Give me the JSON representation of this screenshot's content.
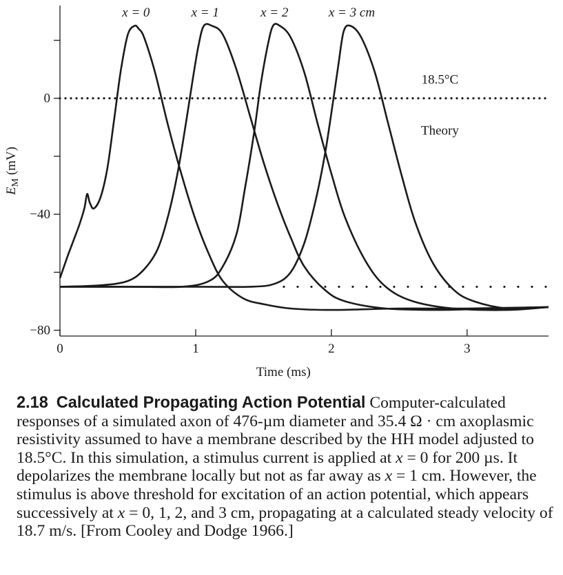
{
  "chart_data": {
    "type": "line",
    "xlabel": "Time (ms)",
    "ylabel_main": "E",
    "ylabel_sub": "M",
    "ylabel_unit": " (mV)",
    "xlim": [
      0,
      3.6
    ],
    "ylim": [
      -82,
      32
    ],
    "x_ticks": [
      0,
      1,
      2,
      3
    ],
    "x_tick_labels": [
      "0",
      "1",
      "2",
      "3"
    ],
    "y_ticks": [
      -80,
      -60,
      -40,
      -20,
      0,
      20
    ],
    "y_tick_labels": [
      "−80",
      "",
      "−40",
      "",
      "0",
      ""
    ],
    "annotations": {
      "temperature": "18.5°C",
      "theory": "Theory"
    },
    "reference_lines": [
      {
        "name": "zero",
        "y": 0,
        "x_start": 0,
        "x_end": 3.6,
        "style": "dotted"
      },
      {
        "name": "resting",
        "y": -65,
        "x_start": 1.65,
        "x_end": 3.6,
        "style": "dotted"
      }
    ],
    "series": [
      {
        "name": "x = 0",
        "x": [
          0.0,
          0.03,
          0.06,
          0.1,
          0.14,
          0.18,
          0.2,
          0.22,
          0.25,
          0.3,
          0.35,
          0.4,
          0.45,
          0.5,
          0.55,
          0.58,
          0.62,
          0.7,
          0.8,
          0.9,
          1.0,
          1.1,
          1.2,
          1.35,
          1.5,
          1.7,
          2.0,
          2.5,
          3.0,
          3.6
        ],
        "y": [
          -62,
          -58,
          -54,
          -49,
          -44,
          -38,
          -33,
          -36,
          -38,
          -34,
          -24,
          -7,
          10,
          22,
          25,
          24,
          21,
          9,
          -10,
          -27,
          -42,
          -54,
          -63,
          -69,
          -71,
          -72.5,
          -73,
          -72.5,
          -72.5,
          -72
        ]
      },
      {
        "name": "x = 1",
        "x": [
          0.0,
          0.3,
          0.5,
          0.62,
          0.72,
          0.8,
          0.87,
          0.93,
          0.98,
          1.02,
          1.06,
          1.12,
          1.2,
          1.3,
          1.4,
          1.5,
          1.6,
          1.7,
          1.8,
          1.95,
          2.1,
          2.4,
          2.8,
          3.2,
          3.6
        ],
        "y": [
          -65,
          -64.5,
          -63,
          -59,
          -52,
          -40,
          -25,
          -8,
          7,
          18,
          25,
          25,
          22,
          10,
          -6,
          -22,
          -36,
          -48,
          -58,
          -66,
          -70,
          -72.5,
          -73,
          -72.5,
          -72
        ]
      },
      {
        "name": "x = 2",
        "x": [
          0.0,
          0.5,
          0.9,
          1.1,
          1.2,
          1.3,
          1.36,
          1.43,
          1.48,
          1.53,
          1.57,
          1.62,
          1.7,
          1.8,
          1.9,
          2.0,
          2.1,
          2.25,
          2.4,
          2.6,
          2.9,
          3.3,
          3.6
        ],
        "y": [
          -65,
          -65,
          -65,
          -63,
          -58,
          -47,
          -32,
          -12,
          5,
          18,
          25,
          25,
          21,
          9,
          -9,
          -26,
          -41,
          -56,
          -65,
          -70,
          -72.5,
          -73,
          -72
        ]
      },
      {
        "name": "x = 3 cm",
        "x": [
          0.0,
          1.0,
          1.4,
          1.58,
          1.7,
          1.8,
          1.88,
          1.95,
          2.0,
          2.05,
          2.09,
          2.14,
          2.22,
          2.32,
          2.42,
          2.52,
          2.62,
          2.75,
          2.9,
          3.05,
          3.3,
          3.6
        ],
        "y": [
          -65,
          -65,
          -65,
          -64,
          -60,
          -50,
          -36,
          -20,
          -5,
          11,
          23,
          25,
          21,
          9,
          -9,
          -27,
          -43,
          -57,
          -66,
          -70,
          -72.5,
          -72
        ]
      }
    ]
  },
  "caption": {
    "number": "2.18",
    "title": "Calculated Propagating Action Potential",
    "s1": " Computer-calculated responses of a simulated axon of 476-µm diameter and 35.4 Ω · cm axoplasmic resistivity assumed to have a membrane described by the HH model adjusted to 18.5°C. In this simulation, a stimulus current is applied at ",
    "v1": "x",
    "s2": " = 0 for 200 µs. It depolarizes the membrane locally but not as far away as ",
    "v2": "x",
    "s3": " = 1 cm. However, the stimulus is above threshold for excitation of an action potential, which appears successively at ",
    "v3": "x",
    "s4": " = 0, 1, 2, and 3 cm, propagating at a calculated steady velocity of 18.7 m/s. [From Cooley and Dodge 1966.]"
  },
  "colors": {
    "ink": "#1a1a1a",
    "background": "#ffffff"
  }
}
